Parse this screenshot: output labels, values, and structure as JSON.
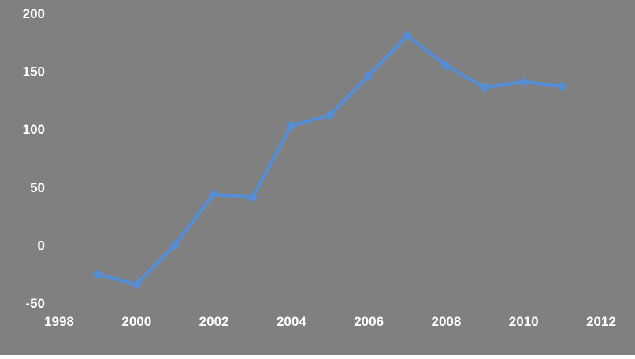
{
  "chart": {
    "background_color": "#808080",
    "line_color": "#558ED5",
    "marker_color": "#558ED5",
    "text_color": "#FFFFFF"
  },
  "chart_data": {
    "type": "line",
    "title": "",
    "xlabel": "",
    "ylabel": "",
    "x": [
      1999,
      2000,
      2001,
      2002,
      2003,
      2004,
      2005,
      2006,
      2007,
      2008,
      2009,
      2010,
      2011
    ],
    "values": [
      -25,
      -34,
      0,
      44,
      41,
      103,
      112,
      146,
      181,
      155,
      136,
      141,
      137
    ],
    "xlim": [
      1998,
      2012
    ],
    "ylim": [
      -50,
      200
    ],
    "x_ticks": [
      1998,
      2000,
      2002,
      2004,
      2006,
      2008,
      2010,
      2012
    ],
    "y_ticks": [
      -50,
      0,
      50,
      100,
      150,
      200
    ],
    "grid": false,
    "legend": "none",
    "marker": "diamond",
    "series_count": 1
  }
}
